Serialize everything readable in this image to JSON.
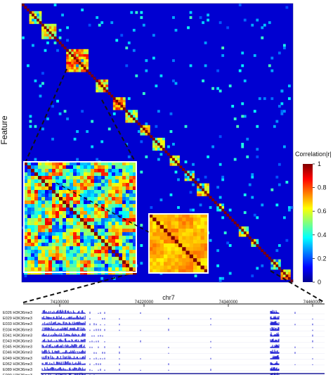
{
  "chart_data": [
    {
      "type": "heatmap",
      "ylabel": "Feature",
      "colorbar": {
        "label": "Correlation|r|",
        "ticks": [
          0,
          0.2,
          0.4,
          0.6,
          0.8,
          1
        ],
        "colorscale": "jet",
        "range": [
          0,
          1
        ]
      },
      "background_value": 0.08,
      "diagonal_value": 1.0,
      "blocks": [
        {
          "from": 0.03,
          "to": 0.07,
          "value": 0.55
        },
        {
          "from": 0.08,
          "to": 0.12,
          "value": 0.6
        },
        {
          "from": 0.17,
          "to": 0.24,
          "value": 0.7
        },
        {
          "from": 0.28,
          "to": 0.31,
          "value": 0.65
        },
        {
          "from": 0.34,
          "to": 0.38,
          "value": 0.7
        },
        {
          "from": 0.39,
          "to": 0.42,
          "value": 0.55
        },
        {
          "from": 0.44,
          "to": 0.47,
          "value": 0.6
        },
        {
          "from": 0.49,
          "to": 0.52,
          "value": 0.5
        },
        {
          "from": 0.55,
          "to": 0.58,
          "value": 0.6
        },
        {
          "from": 0.6,
          "to": 0.63,
          "value": 0.55
        },
        {
          "from": 0.65,
          "to": 0.69,
          "value": 0.6
        },
        {
          "from": 0.72,
          "to": 0.74,
          "value": 0.5
        },
        {
          "from": 0.8,
          "to": 0.83,
          "value": 0.55
        },
        {
          "from": 0.85,
          "to": 0.87,
          "value": 0.5
        },
        {
          "from": 0.92,
          "to": 0.95,
          "value": 0.55
        },
        {
          "from": 0.96,
          "to": 0.99,
          "value": 0.7
        }
      ],
      "zoom_insets": [
        {
          "name": "inset-a",
          "base_value": 0.5
        },
        {
          "name": "inset-b",
          "base_value": 0.7
        }
      ]
    },
    {
      "type": "line",
      "title": "chr7",
      "x_ticks": [
        "74100000",
        "74220000",
        "74340000",
        "74460000"
      ],
      "tracks": [
        "E026 H3K36me3",
        "E029 H3K36me3",
        "E033 H3K36me3",
        "E034 H3K36me3",
        "E041 H3K36me3",
        "E043 H3K36me3",
        "E045 H3K36me3",
        "E046 H3K36me3",
        "E049 H3K36me3",
        "E062 H3K36me3",
        "E089 H3K36me3",
        "E090 H3K36me3"
      ],
      "signal_color": "#2b2bd6"
    }
  ]
}
